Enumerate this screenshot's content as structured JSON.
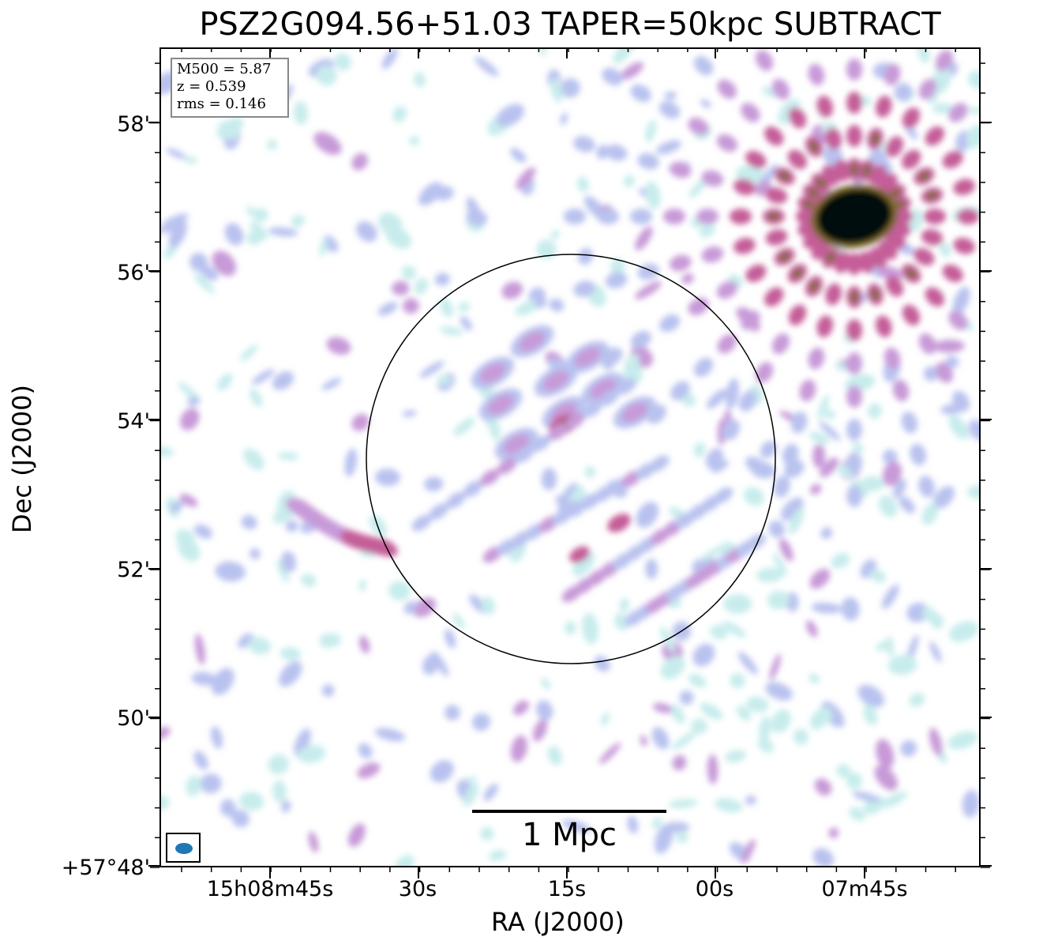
{
  "figure": {
    "title": "PSZ2G094.56+51.03 TAPER=50kpc SUBTRACT",
    "xlabel": "RA (J2000)",
    "ylabel": "Dec (J2000)",
    "x_ticks": [
      "15h08m45s",
      "30s",
      "15s",
      "00s",
      "07m45s"
    ],
    "y_ticks": [
      "58'",
      "56'",
      "54'",
      "52'",
      "50'",
      "+57°48'"
    ],
    "info": {
      "mass": "M500 = 5.87",
      "redshift": "z = 0.539",
      "rms": "rms = 0.146"
    },
    "scale_bar": "1 Mpc",
    "colors": {
      "beam": "#1f77b4",
      "faint": "#c8ecec",
      "low": "#b9c2ef",
      "mid": "#c79ad8",
      "high": "#c55d98",
      "peak": "#7c6a2a",
      "core": "#06080f"
    }
  }
}
